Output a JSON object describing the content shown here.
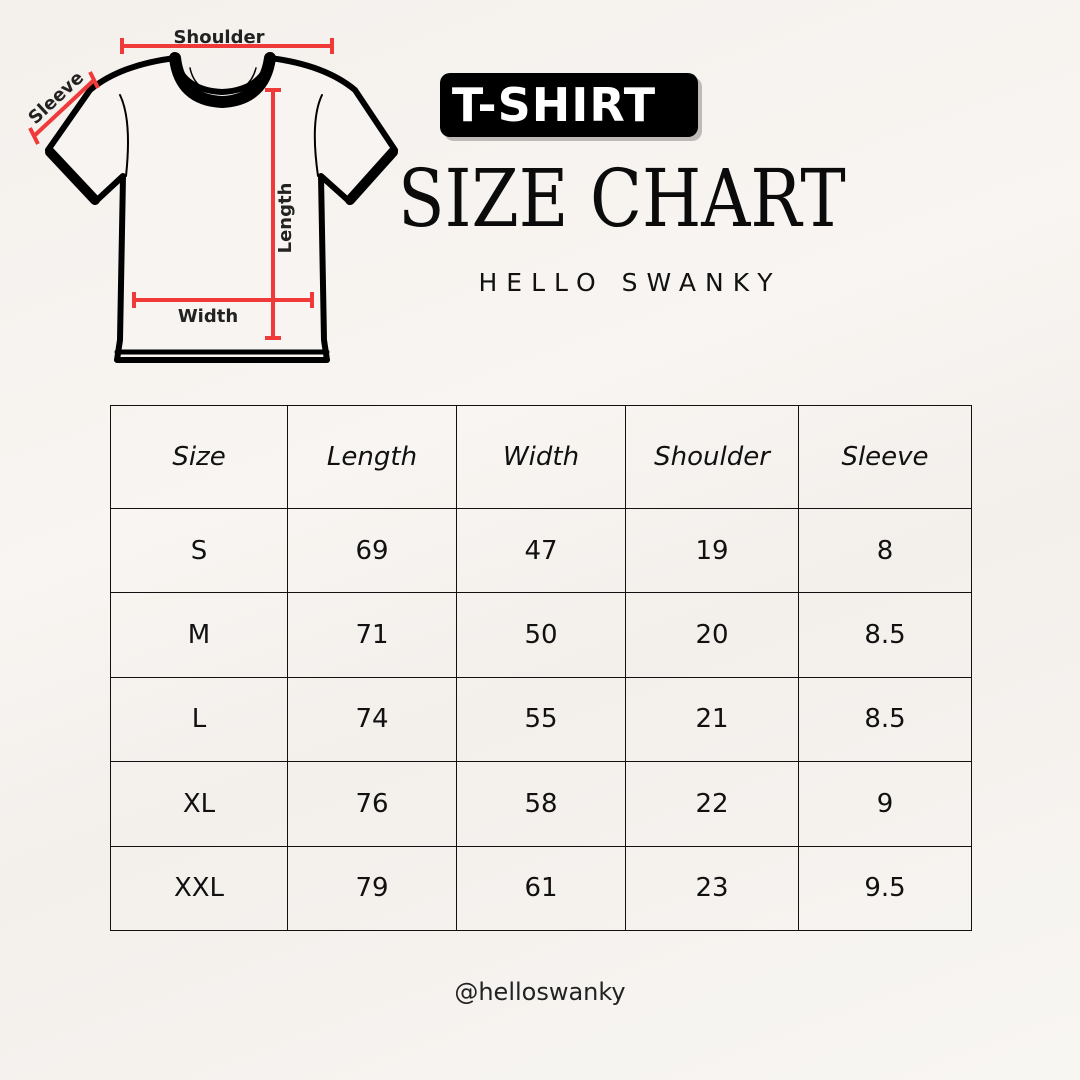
{
  "diagram": {
    "labels": {
      "shoulder": "Shoulder",
      "sleeve": "Sleeve",
      "length": "Length",
      "width": "Width"
    },
    "accent_color": "#f03a3a"
  },
  "header": {
    "badge": "T-SHIRT",
    "title": "SIZE CHART",
    "brand": "HELLO SWANKY"
  },
  "table": {
    "columns": [
      "Size",
      "Length",
      "Width",
      "Shoulder",
      "Sleeve"
    ],
    "rows": [
      [
        "S",
        "69",
        "47",
        "19",
        "8"
      ],
      [
        "M",
        "71",
        "50",
        "20",
        "8.5"
      ],
      [
        "L",
        "74",
        "55",
        "21",
        "8.5"
      ],
      [
        "XL",
        "76",
        "58",
        "22",
        "9"
      ],
      [
        "XXL",
        "79",
        "61",
        "23",
        "9.5"
      ]
    ]
  },
  "footer": {
    "handle": "@helloswanky"
  }
}
